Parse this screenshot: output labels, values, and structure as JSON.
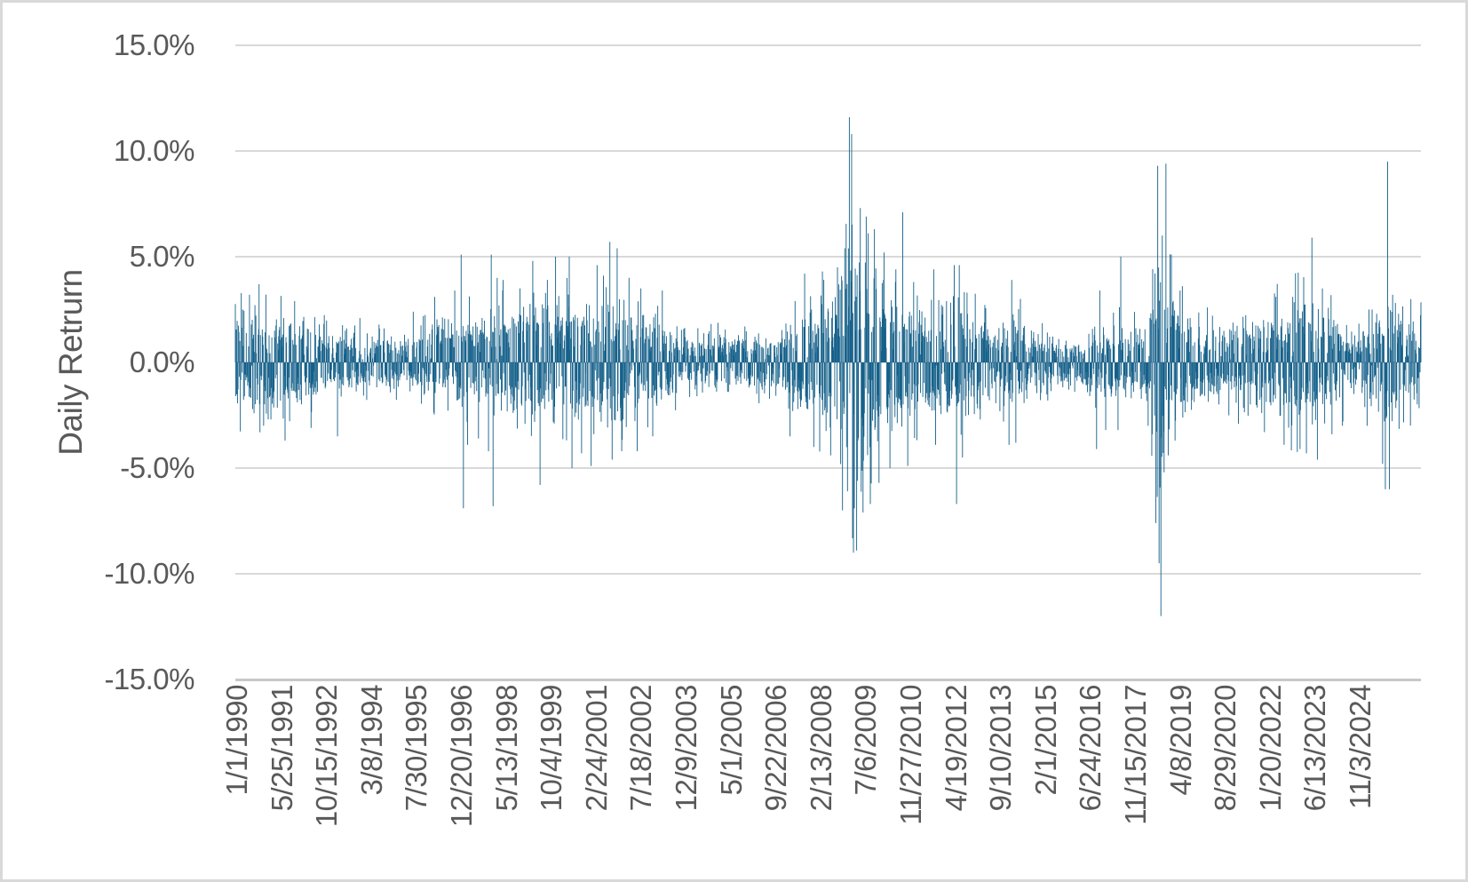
{
  "chart_data": {
    "type": "bar",
    "title": "",
    "xlabel": "",
    "ylabel": "Daily Retrurn",
    "ylim": [
      -15,
      15
    ],
    "grid": true,
    "legend": false,
    "y_ticks": [
      {
        "value": 15,
        "label": "15.0%"
      },
      {
        "value": 10,
        "label": "10.0%"
      },
      {
        "value": 5,
        "label": "5.0%"
      },
      {
        "value": 0,
        "label": "0.0%"
      },
      {
        "value": -5,
        "label": "-5.0%"
      },
      {
        "value": -10,
        "label": "-10.0%"
      },
      {
        "value": -15,
        "label": "-15.0%"
      }
    ],
    "x_ticks": [
      "1/1/1990",
      "5/25/1991",
      "10/15/1992",
      "3/8/1994",
      "7/30/1995",
      "12/20/1996",
      "5/13/1998",
      "10/4/1999",
      "2/24/2001",
      "7/18/2002",
      "12/9/2003",
      "5/1/2005",
      "9/22/2006",
      "2/13/2008",
      "7/6/2009",
      "11/27/2010",
      "4/19/2012",
      "9/10/2013",
      "2/1/2015",
      "6/24/2016",
      "11/15/2017",
      "4/8/2019",
      "8/29/2020",
      "1/20/2022",
      "6/13/2023",
      "11/3/2024"
    ],
    "colors": {
      "bar": "#16618A",
      "grid": "#D9D9D9",
      "axis_line": "#C8C8C8",
      "text": "#595959",
      "border": "#D9D9D9",
      "background": "#FFFFFF"
    },
    "bar_count": 2600,
    "seed": 7,
    "volatility_profile": [
      [
        0.0,
        1.0
      ],
      [
        0.01,
        1.05
      ],
      [
        0.025,
        1.05
      ],
      [
        0.045,
        0.95
      ],
      [
        0.06,
        0.85
      ],
      [
        0.075,
        0.7
      ],
      [
        0.095,
        0.6
      ],
      [
        0.115,
        0.55
      ],
      [
        0.135,
        0.58
      ],
      [
        0.155,
        0.65
      ],
      [
        0.175,
        0.85
      ],
      [
        0.19,
        1.0
      ],
      [
        0.205,
        0.95
      ],
      [
        0.215,
        1.05
      ],
      [
        0.228,
        1.1
      ],
      [
        0.24,
        1.1
      ],
      [
        0.252,
        1.15
      ],
      [
        0.265,
        1.15
      ],
      [
        0.28,
        1.25
      ],
      [
        0.295,
        1.3
      ],
      [
        0.31,
        1.35
      ],
      [
        0.322,
        1.3
      ],
      [
        0.334,
        1.15
      ],
      [
        0.345,
        1.0
      ],
      [
        0.358,
        0.85
      ],
      [
        0.372,
        0.7
      ],
      [
        0.39,
        0.62
      ],
      [
        0.41,
        0.58
      ],
      [
        0.43,
        0.58
      ],
      [
        0.45,
        0.62
      ],
      [
        0.462,
        0.75
      ],
      [
        0.475,
        1.0
      ],
      [
        0.49,
        1.25
      ],
      [
        0.505,
        1.6
      ],
      [
        0.515,
        2.2
      ],
      [
        0.522,
        2.7
      ],
      [
        0.53,
        2.5
      ],
      [
        0.54,
        2.1
      ],
      [
        0.55,
        1.7
      ],
      [
        0.562,
        1.4
      ],
      [
        0.575,
        1.15
      ],
      [
        0.588,
        1.0
      ],
      [
        0.598,
        0.95
      ],
      [
        0.606,
        1.3
      ],
      [
        0.612,
        1.35
      ],
      [
        0.62,
        1.1
      ],
      [
        0.632,
        0.85
      ],
      [
        0.645,
        0.72
      ],
      [
        0.654,
        0.95
      ],
      [
        0.663,
        0.85
      ],
      [
        0.675,
        0.62
      ],
      [
        0.69,
        0.55
      ],
      [
        0.703,
        0.5
      ],
      [
        0.715,
        0.46
      ],
      [
        0.726,
        0.85
      ],
      [
        0.735,
        0.7
      ],
      [
        0.745,
        0.9
      ],
      [
        0.755,
        0.72
      ],
      [
        0.765,
        0.8
      ],
      [
        0.772,
        1.1
      ],
      [
        0.778,
        2.8
      ],
      [
        0.785,
        1.9
      ],
      [
        0.793,
        1.3
      ],
      [
        0.803,
        1.0
      ],
      [
        0.815,
        0.85
      ],
      [
        0.828,
        0.8
      ],
      [
        0.84,
        0.78
      ],
      [
        0.852,
        0.82
      ],
      [
        0.865,
        0.95
      ],
      [
        0.878,
        1.15
      ],
      [
        0.89,
        1.3
      ],
      [
        0.902,
        1.35
      ],
      [
        0.912,
        1.25
      ],
      [
        0.922,
        1.05
      ],
      [
        0.932,
        0.9
      ],
      [
        0.942,
        0.78
      ],
      [
        0.952,
        0.85
      ],
      [
        0.96,
        0.8
      ],
      [
        0.968,
        1.0
      ],
      [
        0.972,
        1.5
      ],
      [
        0.978,
        1.15
      ],
      [
        0.988,
        0.95
      ],
      [
        1.0,
        0.9
      ]
    ],
    "notable_bars": [
      [
        0.006,
        2.5
      ],
      [
        0.012,
        3.2
      ],
      [
        0.02,
        3.7
      ],
      [
        0.024,
        -3.0
      ],
      [
        0.03,
        -2.7
      ],
      [
        0.042,
        -3.7
      ],
      [
        0.05,
        2.9
      ],
      [
        0.064,
        -3.1
      ],
      [
        0.086,
        -3.5
      ],
      [
        0.105,
        2.1
      ],
      [
        0.15,
        2.4
      ],
      [
        0.168,
        3.1
      ],
      [
        0.185,
        3.4
      ],
      [
        0.1905,
        5.1
      ],
      [
        0.1925,
        -6.9
      ],
      [
        0.196,
        -3.9
      ],
      [
        0.205,
        -3.6
      ],
      [
        0.2135,
        -4.2
      ],
      [
        0.216,
        5.1
      ],
      [
        0.2175,
        -6.8
      ],
      [
        0.221,
        4.0
      ],
      [
        0.226,
        3.9
      ],
      [
        0.24,
        3.5
      ],
      [
        0.251,
        4.8
      ],
      [
        0.257,
        -5.8
      ],
      [
        0.263,
        3.9
      ],
      [
        0.27,
        5.0
      ],
      [
        0.2815,
        5.0
      ],
      [
        0.284,
        -5.0
      ],
      [
        0.292,
        -4.3
      ],
      [
        0.3,
        -4.9
      ],
      [
        0.305,
        4.6
      ],
      [
        0.316,
        5.7
      ],
      [
        0.318,
        -4.6
      ],
      [
        0.322,
        5.4
      ],
      [
        0.326,
        -4.2
      ],
      [
        0.332,
        4.0
      ],
      [
        0.339,
        -4.2
      ],
      [
        0.342,
        3.5
      ],
      [
        0.352,
        -3.5
      ],
      [
        0.36,
        3.4
      ],
      [
        0.468,
        -3.5
      ],
      [
        0.472,
        2.9
      ],
      [
        0.48,
        4.2
      ],
      [
        0.488,
        -4.0
      ],
      [
        0.495,
        4.3
      ],
      [
        0.502,
        -4.4
      ],
      [
        0.508,
        4.5
      ],
      [
        0.512,
        -7.0
      ],
      [
        0.514,
        5.4
      ],
      [
        0.5165,
        -6.1
      ],
      [
        0.518,
        11.6
      ],
      [
        0.5197,
        10.8
      ],
      [
        0.5215,
        -9.0
      ],
      [
        0.524,
        -8.9
      ],
      [
        0.527,
        7.3
      ],
      [
        0.5295,
        -7.1
      ],
      [
        0.532,
        6.9
      ],
      [
        0.5355,
        -6.7
      ],
      [
        0.539,
        6.3
      ],
      [
        0.543,
        -5.7
      ],
      [
        0.547,
        5.2
      ],
      [
        0.552,
        -5.0
      ],
      [
        0.557,
        4.4
      ],
      [
        0.563,
        7.1
      ],
      [
        0.567,
        -4.9
      ],
      [
        0.572,
        3.8
      ],
      [
        0.589,
        4.4
      ],
      [
        0.5905,
        -3.9
      ],
      [
        0.6,
        2.9
      ],
      [
        0.6065,
        4.6
      ],
      [
        0.6085,
        -6.7
      ],
      [
        0.6105,
        4.6
      ],
      [
        0.6135,
        -4.5
      ],
      [
        0.617,
        3.3
      ],
      [
        0.648,
        -2.8
      ],
      [
        0.6525,
        -3.9
      ],
      [
        0.655,
        3.9
      ],
      [
        0.6585,
        -3.8
      ],
      [
        0.662,
        3.0
      ],
      [
        0.7265,
        -4.1
      ],
      [
        0.729,
        3.4
      ],
      [
        0.734,
        -3.2
      ],
      [
        0.7445,
        -3.2
      ],
      [
        0.747,
        5.0
      ],
      [
        0.77,
        -3.0
      ],
      [
        0.7735,
        -3.4
      ],
      [
        0.7755,
        4.2
      ],
      [
        0.7765,
        -7.6
      ],
      [
        0.778,
        9.3
      ],
      [
        0.7793,
        -9.5
      ],
      [
        0.7806,
        -12.0
      ],
      [
        0.782,
        6.0
      ],
      [
        0.7833,
        -5.2
      ],
      [
        0.7848,
        9.4
      ],
      [
        0.787,
        -4.4
      ],
      [
        0.7895,
        5.1
      ],
      [
        0.7925,
        -3.7
      ],
      [
        0.797,
        3.4
      ],
      [
        0.82,
        2.6
      ],
      [
        0.846,
        -2.9
      ],
      [
        0.868,
        -3.3
      ],
      [
        0.8775,
        3.1
      ],
      [
        0.8845,
        -3.9
      ],
      [
        0.892,
        3.1
      ],
      [
        0.898,
        -4.1
      ],
      [
        0.9035,
        -4.3
      ],
      [
        0.908,
        5.9
      ],
      [
        0.9125,
        -4.6
      ],
      [
        0.917,
        3.5
      ],
      [
        0.925,
        -3.4
      ],
      [
        0.934,
        -3.0
      ],
      [
        0.9545,
        -3.0
      ],
      [
        0.956,
        2.5
      ],
      [
        0.9625,
        2.3
      ],
      [
        0.9675,
        -4.8
      ],
      [
        0.97,
        -6.0
      ],
      [
        0.9718,
        9.5
      ],
      [
        0.9733,
        -6.0
      ],
      [
        0.976,
        3.2
      ],
      [
        0.981,
        2.3
      ]
    ]
  }
}
